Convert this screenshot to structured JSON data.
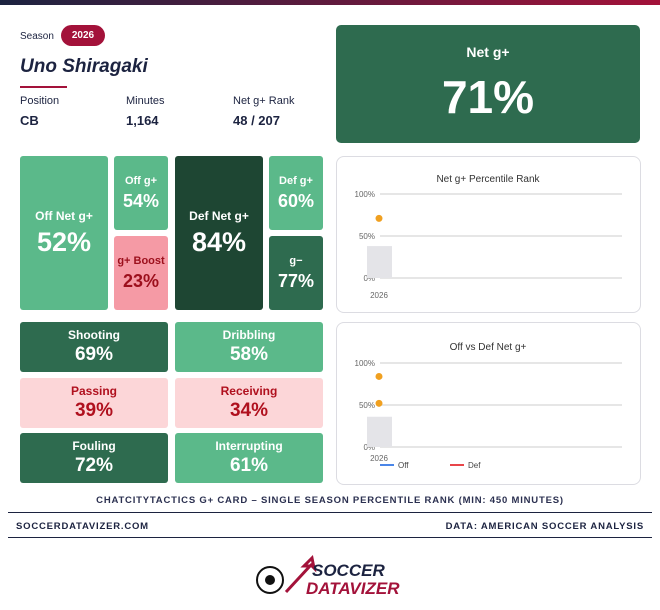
{
  "header": {
    "season_label": "Season",
    "season": "2026",
    "player": "Uno Shiragaki",
    "stats": [
      {
        "label": "Position",
        "value": "CB"
      },
      {
        "label": "Minutes",
        "value": "1,164"
      },
      {
        "label": "Net g+ Rank",
        "value": "48 / 207"
      }
    ]
  },
  "net": {
    "label": "Net g+",
    "value": "71%"
  },
  "tiles": [
    {
      "label": "Off Net g+",
      "value": "52%"
    },
    {
      "label": "Off g+",
      "value": "54%"
    },
    {
      "label": "g+ Boost",
      "value": "23%"
    },
    {
      "label": "Def Net g+",
      "value": "84%"
    },
    {
      "label": "Def g+",
      "value": "60%"
    },
    {
      "label": "g−",
      "value": "77%"
    }
  ],
  "skills": [
    {
      "label": "Shooting",
      "value": "69%"
    },
    {
      "label": "Dribbling",
      "value": "58%"
    },
    {
      "label": "Passing",
      "value": "39%"
    },
    {
      "label": "Receiving",
      "value": "34%"
    },
    {
      "label": "Fouling",
      "value": "72%"
    },
    {
      "label": "Interrupting",
      "value": "61%"
    }
  ],
  "charts": [
    {
      "type": "scatter",
      "title": "Net g+ Percentile Rank",
      "categories": [
        "2026"
      ],
      "ylim": [
        0,
        100
      ],
      "yticks": [
        {
          "value": 0,
          "label": "0%"
        },
        {
          "value": 50,
          "label": "50%"
        },
        {
          "value": 100,
          "label": "100%"
        }
      ],
      "grid": true,
      "bars": {
        "color": "#e4e4e8",
        "values": [
          38
        ]
      },
      "series": [
        {
          "color": "#f0a020",
          "values": [
            71
          ]
        }
      ]
    },
    {
      "type": "scatter",
      "title": "Off vs Def Net g+",
      "categories": [
        "2026"
      ],
      "ylim": [
        0,
        100
      ],
      "yticks": [
        {
          "value": 0,
          "label": "0%"
        },
        {
          "value": 50,
          "label": "50%"
        },
        {
          "value": 100,
          "label": "100%"
        }
      ],
      "grid": true,
      "bars": {
        "color": "#e4e4e8",
        "values": [
          36
        ]
      },
      "series": [
        {
          "name": "Off",
          "color": "#4a86e8",
          "marker_color": "#f0a020",
          "values": [
            52
          ]
        },
        {
          "name": "Def",
          "color": "#e8454a",
          "marker_color": "#f0a020",
          "values": [
            84
          ]
        }
      ]
    }
  ],
  "footer": {
    "caption": "CHATCITYTACTICS G+ CARD – SINGLE SEASON PERCENTILE RANK (MIN: 450 MINUTES)",
    "site": "SOCCERDATAVIZER.COM",
    "source": "DATA: AMERICAN SOCCER ANALYSIS",
    "logo_top": "SOCCER",
    "logo_bottom": "DATAVIZER"
  }
}
